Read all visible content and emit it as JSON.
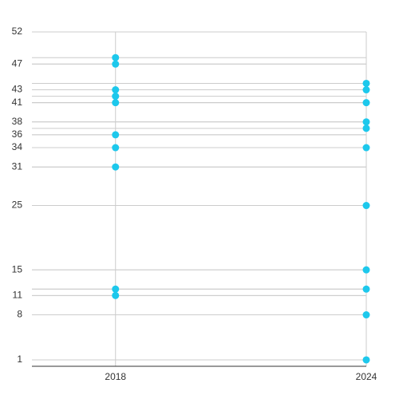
{
  "chart_data": {
    "type": "dot",
    "x": [
      2018,
      2024
    ],
    "values": [
      [
        48,
        47,
        43,
        42,
        41,
        36,
        34,
        31,
        12,
        11
      ],
      [
        44,
        43,
        41,
        38,
        37,
        34,
        25,
        15,
        12,
        8,
        1
      ]
    ],
    "color": "#1dc8ec",
    "xlim": [
      2016,
      2024
    ],
    "xticks": [
      2018,
      2024
    ],
    "ylim": [
      0,
      52
    ],
    "yticks": [
      1,
      8,
      11,
      15,
      25,
      31,
      34,
      36,
      38,
      41,
      43,
      47,
      52
    ],
    "grid": true
  }
}
